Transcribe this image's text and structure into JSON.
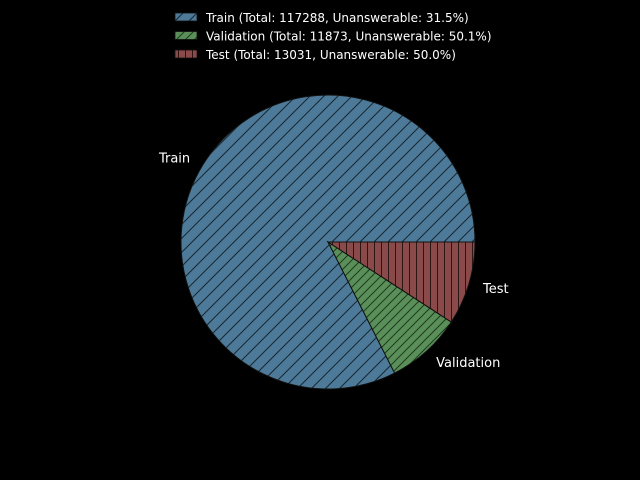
{
  "chart_data": {
    "type": "pie",
    "title": "",
    "background_color": "#000000",
    "text_color": "#ffffff",
    "start_angle_deg": 0,
    "direction": "counterclockwise",
    "legend_placement": "top-center",
    "slices": [
      {
        "label": "Train",
        "value": 117288,
        "legend": "Train (Total: 117288, Unanswerable: 31.5%)",
        "color": "#4e7a99",
        "hatch": "diagonal"
      },
      {
        "label": "Validation",
        "value": 11873,
        "legend": "Validation (Total: 11873, Unanswerable: 50.1%)",
        "color": "#5a8f5a",
        "hatch": "diagonal-dense"
      },
      {
        "label": "Test",
        "value": 13031,
        "legend": "Test (Total: 13031, Unanswerable: 50.0%)",
        "color": "#8b4a4a",
        "hatch": "vertical"
      }
    ]
  }
}
